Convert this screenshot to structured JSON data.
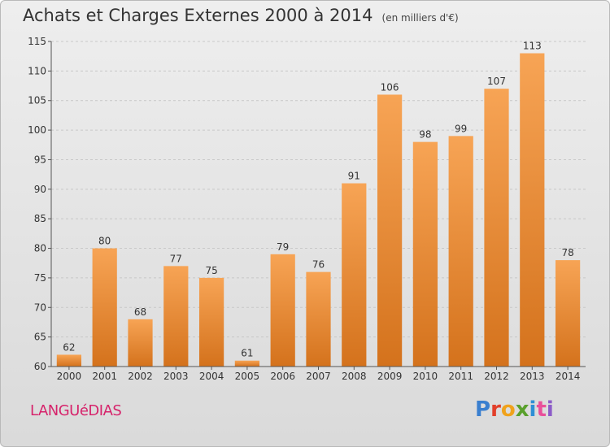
{
  "header": {
    "title": "Achats et Charges Externes 2000 à 2014",
    "subtitle": "(en milliers d'€)"
  },
  "commune": "LANGUéDIAS",
  "logo": {
    "letters": [
      {
        "ch": "P",
        "color": "#3a7fcf"
      },
      {
        "ch": "r",
        "color": "#e23f2a"
      },
      {
        "ch": "o",
        "color": "#f0a21c"
      },
      {
        "ch": "x",
        "color": "#5aa02c"
      },
      {
        "ch": "i",
        "color": "#2d8fd5"
      },
      {
        "ch": "t",
        "color": "#e94f9a"
      },
      {
        "ch": "i",
        "color": "#8c5cc8"
      }
    ]
  },
  "chart_data": {
    "type": "bar",
    "categories": [
      "2000",
      "2001",
      "2002",
      "2003",
      "2004",
      "2005",
      "2006",
      "2007",
      "2008",
      "2009",
      "2010",
      "2011",
      "2012",
      "2013",
      "2014"
    ],
    "values": [
      62,
      80,
      68,
      77,
      75,
      61,
      79,
      76,
      91,
      106,
      98,
      99,
      107,
      113,
      78
    ],
    "ylim": [
      60,
      115
    ],
    "yticks": [
      60,
      65,
      70,
      75,
      80,
      85,
      90,
      95,
      100,
      105,
      110,
      115
    ],
    "grid": true,
    "bar_color_top": "#f7a455",
    "bar_color_bottom": "#d4721c"
  }
}
